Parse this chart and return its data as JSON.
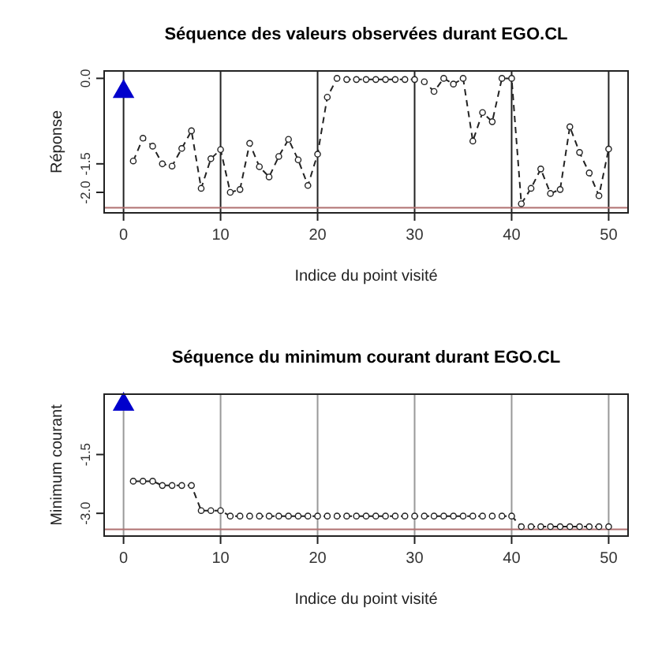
{
  "chart_data": [
    {
      "type": "line",
      "title": "Séquence des valeurs observées durant EGO.CL",
      "xlabel": "Indice du point visité",
      "ylabel": "Réponse",
      "xlim": [
        -2,
        52
      ],
      "ylim": [
        -2.36,
        0.13
      ],
      "xticks": [
        0,
        10,
        20,
        30,
        40,
        50
      ],
      "yticks": [
        {
          "value": 0,
          "label": "0.0"
        },
        {
          "value": -1.5,
          "label": "-1.5"
        },
        {
          "value": -2,
          "label": "-2.0"
        }
      ],
      "grid": "x",
      "ref_lines": [
        {
          "axis": "y",
          "value": -2.27,
          "color": "#b07070"
        }
      ],
      "series": [
        {
          "type": "line",
          "color": "#222222",
          "marker": "circle",
          "line_style": "dashed",
          "x": [
            1,
            2,
            3,
            4,
            5,
            6,
            7,
            8,
            9,
            10,
            11,
            12,
            13,
            14,
            15,
            16,
            17,
            18,
            19,
            20,
            21,
            22,
            23,
            24,
            25,
            26,
            27,
            28,
            29,
            30,
            31,
            32,
            33,
            34,
            35,
            36,
            37,
            38,
            39,
            40,
            41,
            42,
            43,
            44,
            45,
            46,
            47,
            48,
            49,
            50
          ],
          "values": [
            -1.45,
            -1.05,
            -1.19,
            -1.5,
            -1.54,
            -1.23,
            -0.92,
            -1.93,
            -1.41,
            -1.25,
            -2.0,
            -1.95,
            -1.14,
            -1.55,
            -1.73,
            -1.37,
            -1.07,
            -1.43,
            -1.88,
            -1.33,
            -0.33,
            0,
            -0.02,
            -0.02,
            -0.02,
            -0.02,
            -0.02,
            -0.02,
            -0.02,
            -0.02,
            -0.06,
            -0.23,
            0,
            -0.1,
            0,
            -1.1,
            -0.6,
            -0.76,
            0,
            0,
            -2.2,
            -1.93,
            -1.59,
            -2.02,
            -1.95,
            -0.85,
            -1.3,
            -1.66,
            -2.06,
            -1.24
          ]
        },
        {
          "type": "scatter",
          "color": "#0000cc",
          "marker": "triangle",
          "x": [
            0
          ],
          "values": [
            -0.22
          ]
        }
      ]
    },
    {
      "type": "line",
      "title": "Séquence du minimum courant durant EGO.CL",
      "xlabel": "Indice du point visité",
      "ylabel": "Minimum courant",
      "xlim": [
        -2,
        52
      ],
      "ylim": [
        -3.58,
        0.04
      ],
      "xticks": [
        0,
        10,
        20,
        30,
        40,
        50
      ],
      "yticks": [
        {
          "value": -1.5,
          "label": "-1.5"
        },
        {
          "value": -3,
          "label": "-3.0"
        }
      ],
      "grid": "x",
      "ref_lines": [
        {
          "axis": "y",
          "value": -3.41,
          "color": "#b07070"
        }
      ],
      "series": [
        {
          "type": "line",
          "color": "#222222",
          "marker": "circle",
          "line_style": "dashed",
          "x": [
            1,
            2,
            3,
            4,
            5,
            6,
            7,
            8,
            9,
            10,
            11,
            12,
            13,
            14,
            15,
            16,
            17,
            18,
            19,
            20,
            21,
            22,
            23,
            24,
            25,
            26,
            27,
            28,
            29,
            30,
            31,
            32,
            33,
            34,
            35,
            36,
            37,
            38,
            39,
            40,
            41,
            42,
            43,
            44,
            45,
            46,
            47,
            48,
            49,
            50
          ],
          "values": [
            -2.18,
            -2.18,
            -2.18,
            -2.29,
            -2.29,
            -2.29,
            -2.29,
            -2.93,
            -2.93,
            -2.93,
            -3.07,
            -3.07,
            -3.07,
            -3.07,
            -3.07,
            -3.07,
            -3.07,
            -3.07,
            -3.07,
            -3.07,
            -3.07,
            -3.07,
            -3.07,
            -3.07,
            -3.07,
            -3.07,
            -3.07,
            -3.07,
            -3.07,
            -3.07,
            -3.07,
            -3.07,
            -3.07,
            -3.07,
            -3.07,
            -3.07,
            -3.07,
            -3.07,
            -3.07,
            -3.07,
            -3.34,
            -3.34,
            -3.34,
            -3.34,
            -3.34,
            -3.34,
            -3.34,
            -3.34,
            -3.34,
            -3.34
          ]
        },
        {
          "type": "scatter",
          "color": "#0000cc",
          "marker": "triangle",
          "x": [
            0
          ],
          "values": [
            -0.2
          ]
        }
      ]
    }
  ]
}
